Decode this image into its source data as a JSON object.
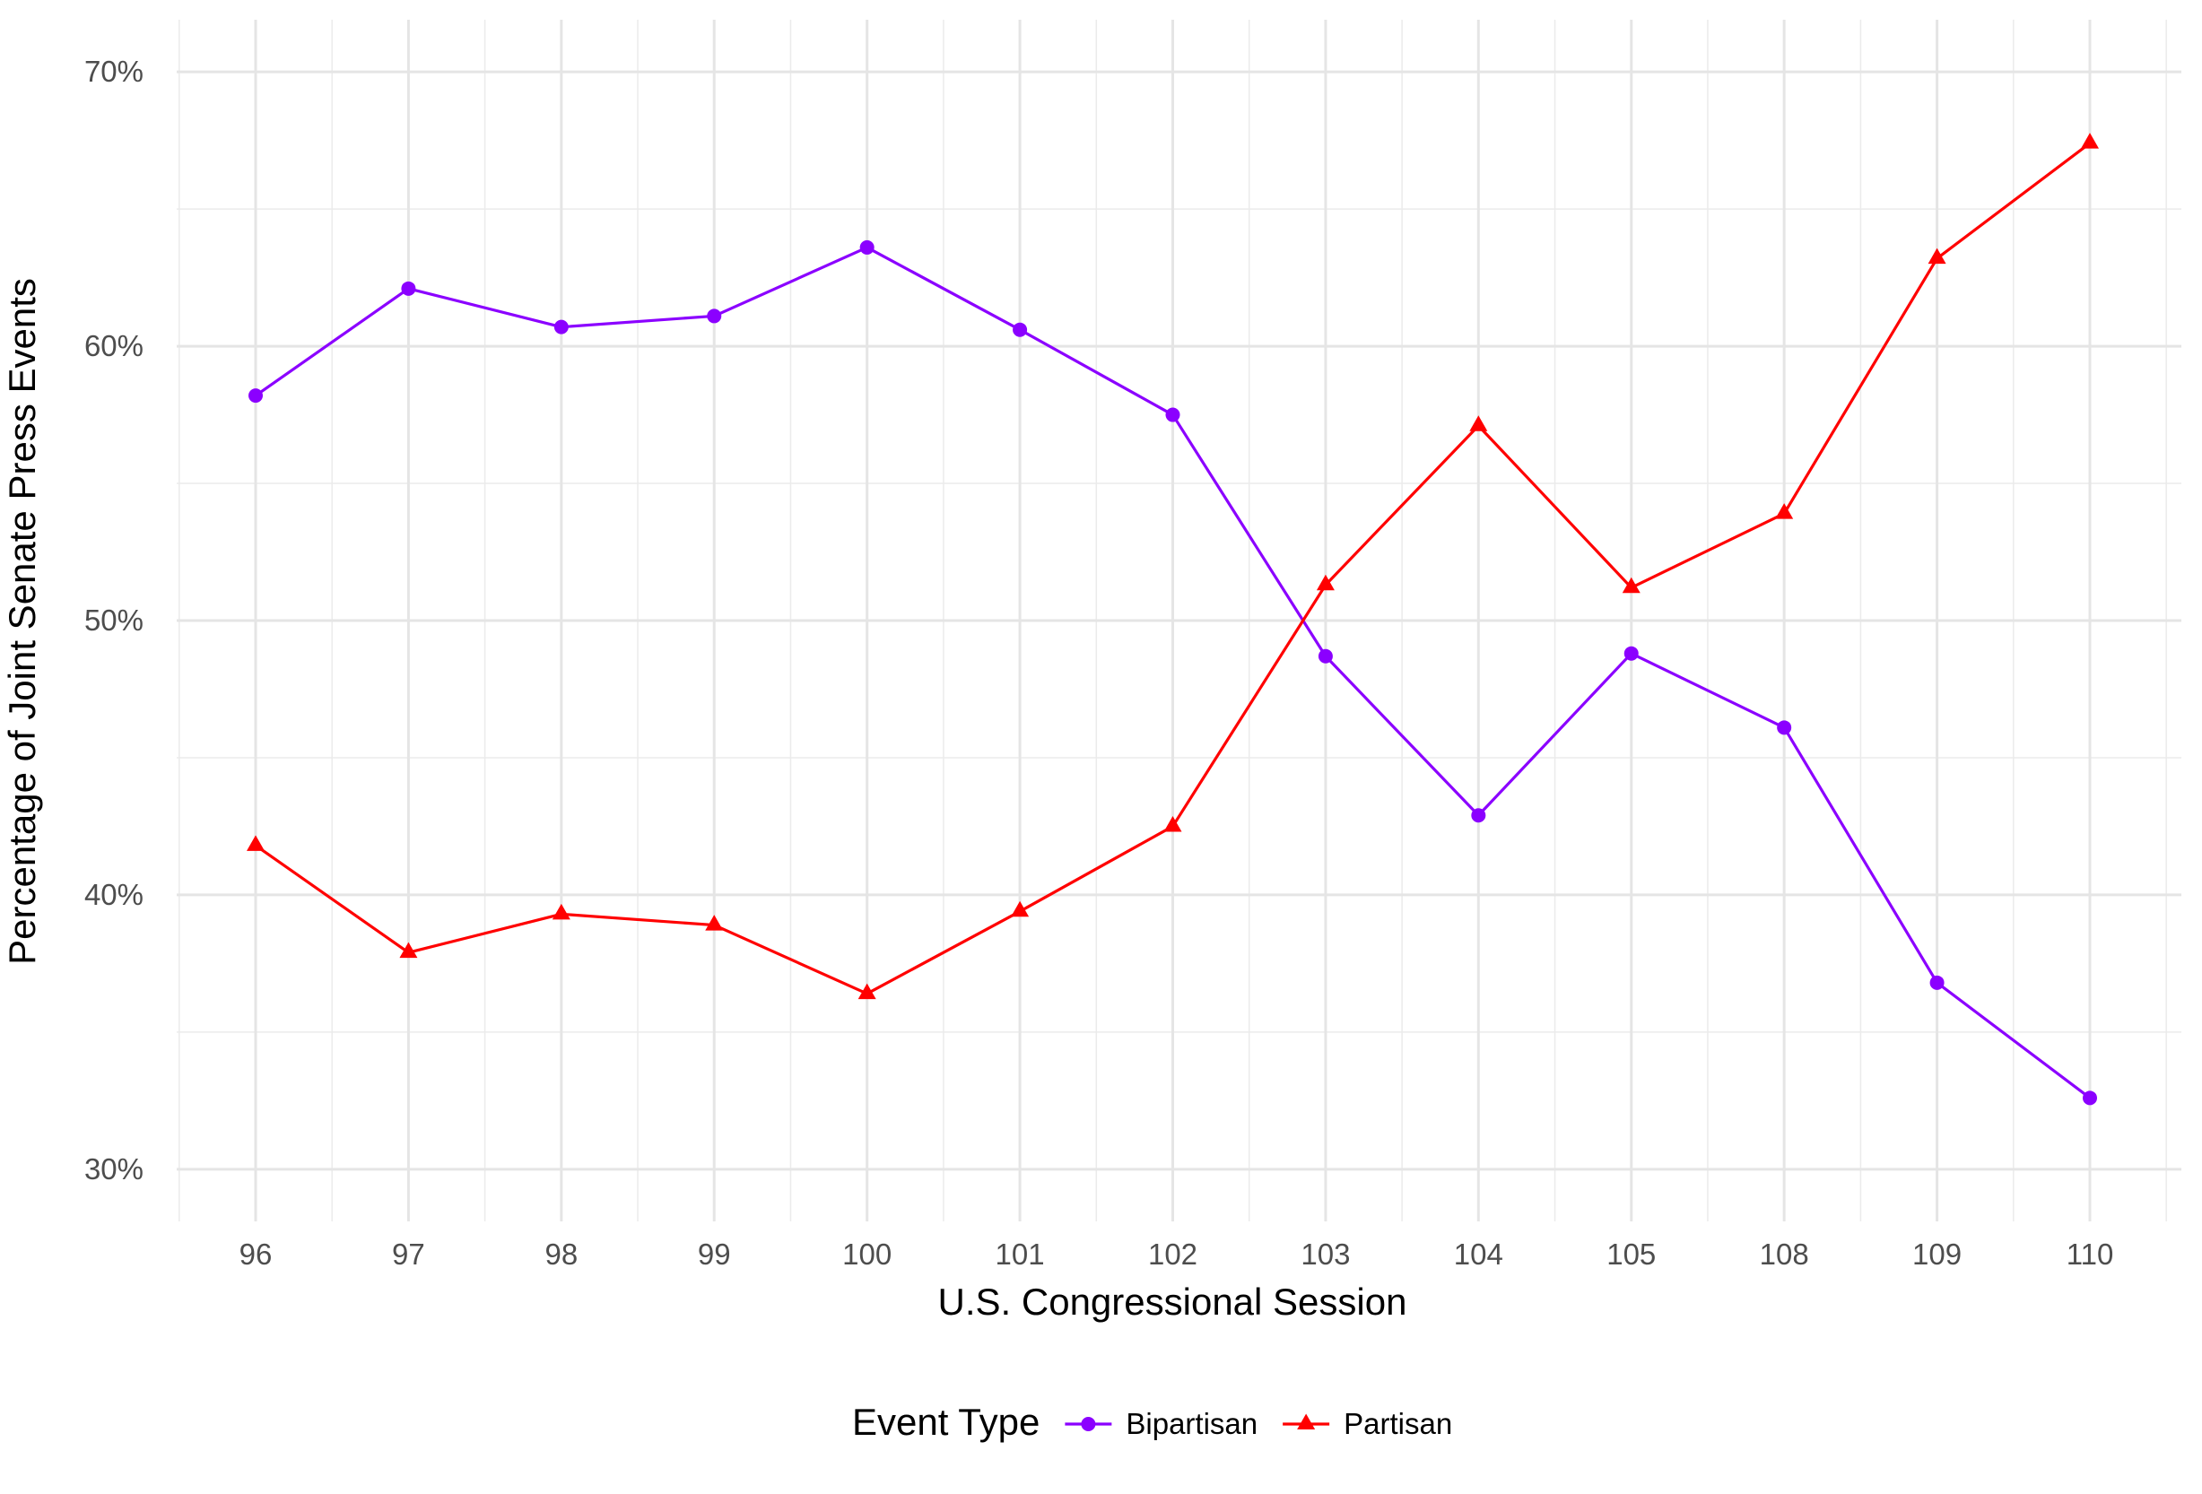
{
  "chart_data": {
    "type": "line",
    "title": "",
    "xlabel": "U.S. Congressional Session",
    "ylabel": "Percentage of Joint Senate Press Events",
    "categories": [
      "96",
      "97",
      "98",
      "99",
      "100",
      "101",
      "102",
      "103",
      "104",
      "105",
      "108",
      "109",
      "110"
    ],
    "y_ticks": [
      "30%",
      "40%",
      "50%",
      "60%",
      "70%"
    ],
    "y_tick_values": [
      30,
      40,
      50,
      60,
      70
    ],
    "ylim": [
      28.1,
      71.9
    ],
    "grid": true,
    "legend": {
      "title": "Event Type",
      "position": "bottom"
    },
    "series": [
      {
        "name": "Bipartisan",
        "color": "#8B00FF",
        "marker": "circle",
        "values": [
          58.2,
          62.1,
          60.7,
          61.1,
          63.6,
          60.6,
          57.5,
          48.7,
          42.9,
          48.8,
          46.1,
          36.8,
          32.6
        ]
      },
      {
        "name": "Partisan",
        "color": "#FF0000",
        "marker": "triangle",
        "values": [
          41.8,
          37.9,
          39.3,
          38.9,
          36.4,
          39.4,
          42.5,
          51.3,
          57.1,
          51.2,
          53.9,
          63.2,
          67.4
        ]
      }
    ]
  }
}
